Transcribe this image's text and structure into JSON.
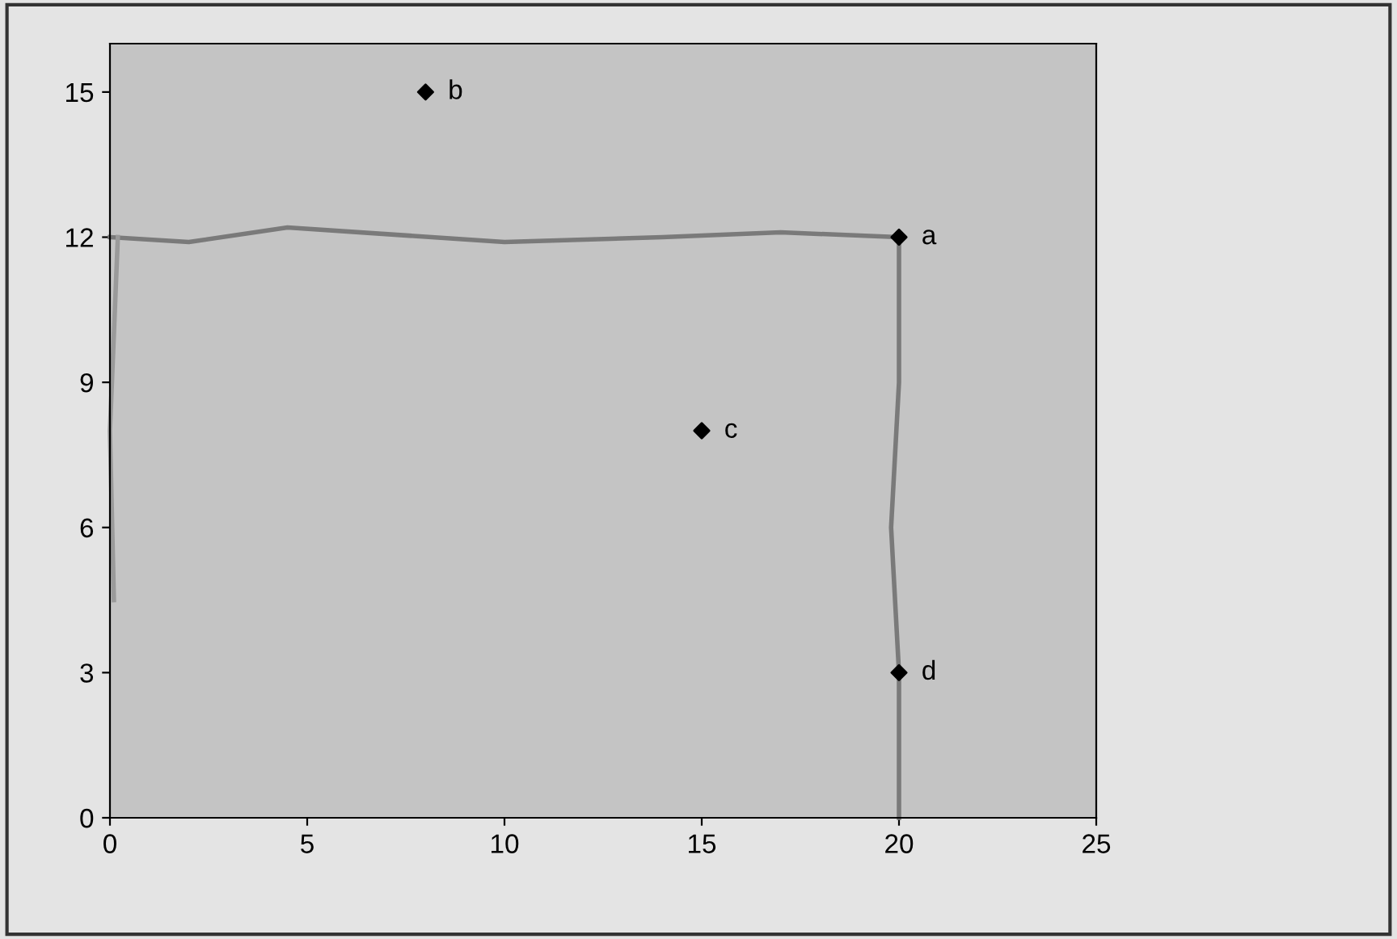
{
  "chart_data": {
    "type": "scatter",
    "xlim": [
      0,
      25
    ],
    "ylim": [
      0,
      16
    ],
    "xticks": [
      0,
      5,
      10,
      15,
      20,
      25
    ],
    "yticks": [
      0,
      3,
      6,
      9,
      12,
      15
    ],
    "grid": false,
    "legend": false,
    "marker": "diamond",
    "series": [
      {
        "color": "#000000",
        "x": [
          20,
          8,
          15,
          20
        ],
        "values": [
          12,
          15,
          8,
          3
        ]
      },
      {
        "type": "line",
        "color": "#7a7a7a",
        "marker": "none",
        "x": [
          0,
          2,
          4.5,
          10,
          14,
          17,
          20,
          20,
          19.8,
          20,
          20
        ],
        "values": [
          12,
          11.9,
          12.2,
          11.9,
          12,
          12.1,
          12,
          9,
          6,
          3,
          0
        ]
      },
      {
        "type": "line",
        "color": "#9a9a9a",
        "marker": "none",
        "x": [
          0.2,
          0,
          0.1
        ],
        "values": [
          12,
          8,
          4.5
        ]
      }
    ],
    "annotations": [
      {
        "text": "a",
        "x": 20,
        "y": 12
      },
      {
        "text": "b",
        "x": 8,
        "y": 15
      },
      {
        "text": "c",
        "x": 15,
        "y": 8
      },
      {
        "text": "d",
        "x": 20,
        "y": 3
      }
    ]
  }
}
